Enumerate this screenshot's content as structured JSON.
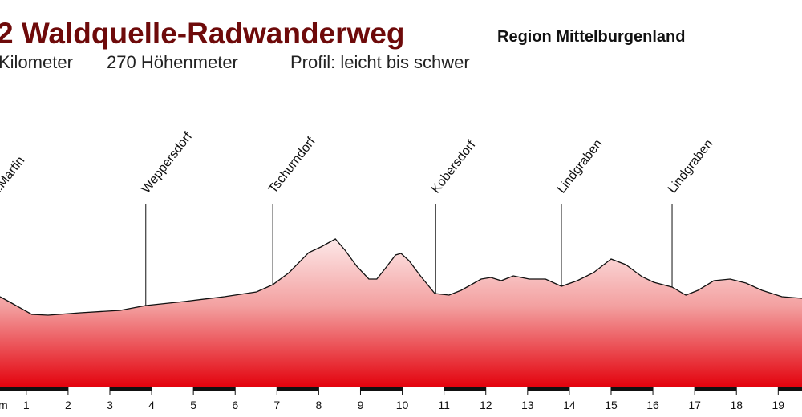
{
  "chart_data": {
    "type": "area",
    "title": "2 Waldquelle-Radwanderweg",
    "region": "Region Mittelburgenland",
    "facts": [
      "Kilometer",
      "270 Höhenmeter",
      "Profil: leicht bis schwer"
    ],
    "xlabel": "m",
    "x": [
      0.37,
      0.65,
      1.13,
      1.52,
      2.29,
      3.25,
      3.86,
      4.78,
      5.74,
      6.51,
      6.9,
      7.29,
      7.76,
      8.05,
      8.4,
      8.63,
      8.91,
      9.2,
      9.39,
      9.59,
      9.84,
      9.97,
      10.16,
      10.45,
      10.78,
      11.12,
      11.41,
      11.89,
      12.12,
      12.37,
      12.66,
      13.04,
      13.43,
      13.81,
      14.19,
      14.58,
      15.0,
      15.35,
      15.74,
      16.02,
      16.46,
      16.79,
      17.08,
      17.46,
      17.85,
      18.23,
      18.61,
      19.09,
      19.57
    ],
    "values": [
      110,
      102,
      88,
      87,
      90,
      93,
      99,
      104,
      110,
      116,
      125,
      140,
      165,
      172,
      182,
      168,
      148,
      132,
      132,
      145,
      162,
      164,
      155,
      135,
      114,
      112,
      118,
      132,
      134,
      130,
      136,
      132,
      132,
      123,
      130,
      140,
      157,
      150,
      135,
      128,
      122,
      112,
      118,
      130,
      132,
      127,
      118,
      110,
      108
    ],
    "color": "#e3000b",
    "xlim": [
      0.37,
      19.57
    ],
    "ylim": [
      0,
      200
    ],
    "xticks": [
      1,
      2,
      3,
      4,
      5,
      6,
      7,
      8,
      9,
      10,
      11,
      12,
      13,
      14,
      15,
      16,
      17,
      18,
      19
    ],
    "places": [
      {
        "name": "t.Martin",
        "km": 0.3
      },
      {
        "name": "Weppersdorf",
        "km": 3.86
      },
      {
        "name": "Tschurndorf",
        "km": 6.9
      },
      {
        "name": "Kobersdorf",
        "km": 10.8
      },
      {
        "name": "Lindgraben",
        "km": 13.81
      },
      {
        "name": "Lindgraben",
        "km": 16.46
      }
    ]
  }
}
